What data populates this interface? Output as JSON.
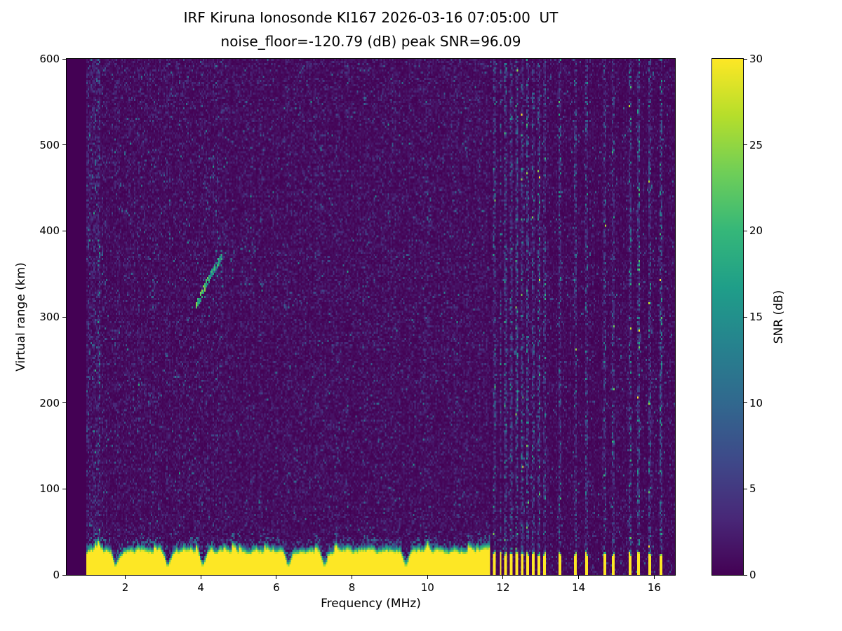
{
  "figure": {
    "title_line1": "IRF Kiruna Ionosonde KI167 2026-03-16 07:05:00  UT",
    "title_line2": "noise_floor=-120.79 (dB) peak SNR=96.09"
  },
  "chart_data": {
    "type": "heatmap",
    "title": "IRF Kiruna Ionosonde KI167 2026-03-16 07:05:00  UT",
    "subtitle": "noise_floor=-120.79 (dB) peak SNR=96.09",
    "station": "IRF Kiruna Ionosonde KI167",
    "timestamp_ut": "2026-03-16 07:05:00",
    "noise_floor_db": -120.79,
    "peak_snr_db": 96.09,
    "xlabel": "Frequency (MHz)",
    "ylabel": "Virtual range (km)",
    "colorbar_label": "SNR (dB)",
    "xlim": [
      0.45,
      16.55
    ],
    "ylim": [
      0,
      600
    ],
    "clim": [
      0,
      30
    ],
    "x_ticks": [
      2,
      4,
      6,
      8,
      10,
      12,
      14,
      16
    ],
    "y_ticks": [
      0,
      100,
      200,
      300,
      400,
      500,
      600
    ],
    "colorbar_ticks": [
      0,
      5,
      10,
      15,
      20,
      25,
      30
    ],
    "colormap": "viridis",
    "colormap_stops": [
      "#440154",
      "#482878",
      "#3e4989",
      "#31688e",
      "#26828e",
      "#1f9e89",
      "#35b779",
      "#6ece58",
      "#b5de2b",
      "#fde725"
    ],
    "grid": false,
    "features": {
      "sounding": {
        "freq_start_mhz": 0.97,
        "freq_end_mhz": 16.5
      },
      "background_noise_snr_db": [
        0,
        3
      ],
      "noisy_left_edge_mhz": [
        0.97,
        1.35
      ],
      "ground_clutter_band": {
        "freq_range_mhz": [
          0.97,
          11.65
        ],
        "top_km_mean": 34,
        "fringe_depth_km": 8,
        "saturated_snr_db": 30,
        "notch_freqs_mhz": [
          1.72,
          3.1,
          4.02,
          6.3,
          7.25,
          9.4
        ]
      },
      "rfi_bars_dense_mhz": [
        11.78,
        11.93,
        12.07,
        12.22,
        12.37,
        12.52,
        12.67,
        12.81,
        12.96,
        13.11
      ],
      "rfi_bars_sparse_mhz": [
        13.52,
        13.93,
        14.22,
        14.7,
        14.93,
        15.37,
        15.59,
        15.89,
        16.19
      ],
      "rfi_bar_width_mhz": 0.07,
      "rfi_bar_top_km": 26,
      "echo_trace": {
        "points_mhz_km": [
          [
            3.85,
            310
          ],
          [
            3.95,
            319
          ],
          [
            4.05,
            329
          ],
          [
            4.15,
            339
          ],
          [
            4.25,
            348
          ],
          [
            4.35,
            356
          ],
          [
            4.45,
            363
          ],
          [
            4.55,
            369
          ]
        ],
        "snr_db_range": [
          10,
          24
        ]
      },
      "echo_scatter_cloud": {
        "freq_range_mhz": [
          4.35,
          5.45
        ],
        "range_km": [
          335,
          395
        ]
      },
      "weak_vertical_streak": {
        "freq_mhz": 10.05,
        "range_km": [
          392,
          446
        ]
      }
    }
  }
}
